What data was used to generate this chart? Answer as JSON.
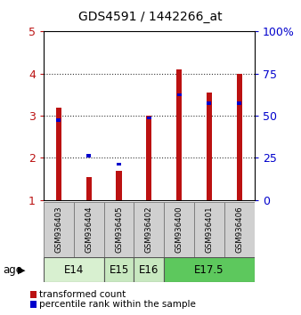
{
  "title": "GDS4591 / 1442266_at",
  "samples": [
    "GSM936403",
    "GSM936404",
    "GSM936405",
    "GSM936402",
    "GSM936400",
    "GSM936401",
    "GSM936406"
  ],
  "red_values": [
    3.2,
    1.55,
    1.7,
    3.0,
    4.1,
    3.55,
    4.0
  ],
  "blue_values": [
    2.9,
    2.05,
    1.85,
    2.95,
    3.5,
    3.3,
    3.3
  ],
  "age_groups": [
    {
      "label": "E14",
      "start": 0,
      "end": 2,
      "color": "#d8f0d0"
    },
    {
      "label": "E15",
      "start": 2,
      "end": 3,
      "color": "#c8e8c0"
    },
    {
      "label": "E16",
      "start": 3,
      "end": 4,
      "color": "#c8e8c0"
    },
    {
      "label": "E17.5",
      "start": 4,
      "end": 7,
      "color": "#5dc85d"
    }
  ],
  "ylim_left": [
    1,
    5
  ],
  "ylim_right": [
    0,
    100
  ],
  "yticks_left": [
    1,
    2,
    3,
    4,
    5
  ],
  "yticks_right": [
    0,
    25,
    50,
    75,
    100
  ],
  "ytick_labels_right": [
    "0",
    "25",
    "50",
    "75",
    "100%"
  ],
  "red_color": "#bb1111",
  "blue_color": "#0000cc",
  "bar_width": 0.18,
  "sample_bg": "#d0d0d0",
  "plot_bg": "#ffffff",
  "grid_color": "#333333"
}
